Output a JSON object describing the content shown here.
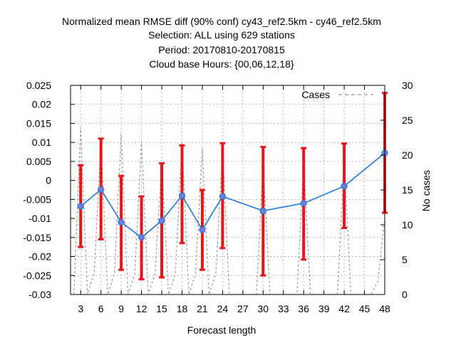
{
  "chart_data": {
    "type": "line",
    "title_lines": [
      "Normalized mean RMSE diff (90% conf) cy43_ref2.5km - cy46_ref2.5km",
      "Selection: ALL using   629 stations",
      "Period: 20170810-20170815",
      "Cloud base   Hours: {00,06,12,18}"
    ],
    "xlabel": "Forecast length",
    "ylabel_right": "No cases",
    "x_ticks": [
      "3",
      "6",
      "9",
      "12",
      "15",
      "18",
      "21",
      "24",
      "27",
      "30",
      "33",
      "36",
      "39",
      "42",
      "45",
      "48"
    ],
    "y_ticks": [
      "0.025",
      "0.02",
      "0.015",
      "0.01",
      "0.005",
      "0",
      "-0.005",
      "-0.01",
      "-0.015",
      "-0.02",
      "-0.025",
      "-0.03"
    ],
    "y2_ticks": [
      "30",
      "25",
      "20",
      "15",
      "10",
      "5",
      "0"
    ],
    "ylim": [
      -0.03,
      0.025
    ],
    "y2lim": [
      0,
      30
    ],
    "xlim": [
      1.5,
      48
    ],
    "grid": true,
    "legend": {
      "label": "Cases",
      "placement": "top-right"
    },
    "series_line": {
      "color": "#1f78d8",
      "x": [
        3,
        6,
        9,
        12,
        15,
        18,
        21,
        24,
        30,
        36,
        42,
        48
      ],
      "y": [
        -0.0068,
        -0.0024,
        -0.011,
        -0.015,
        -0.0106,
        -0.004,
        -0.013,
        -0.0042,
        -0.008,
        -0.006,
        -0.0015,
        0.0072
      ]
    },
    "error_bars": {
      "color": "#e8141b",
      "x": [
        3,
        6,
        9,
        12,
        15,
        18,
        21,
        24,
        30,
        36,
        42,
        48
      ],
      "low": [
        -0.0175,
        -0.0155,
        -0.0235,
        -0.026,
        -0.0255,
        -0.0165,
        -0.0235,
        -0.0178,
        -0.025,
        -0.0208,
        -0.0125,
        -0.0085
      ],
      "high": [
        0.004,
        0.011,
        0.0012,
        -0.0042,
        0.0045,
        0.0092,
        -0.0025,
        0.0098,
        0.0088,
        0.0085,
        0.0097,
        0.023
      ]
    },
    "cases_series": {
      "color": "#999999",
      "x": [
        2,
        3,
        4,
        5,
        6,
        7,
        8,
        9,
        10,
        11,
        12,
        13,
        14,
        15,
        16,
        17,
        18,
        19,
        20,
        21,
        22,
        23,
        24,
        25,
        26,
        27,
        28,
        29,
        30,
        31,
        32,
        33,
        34,
        35,
        36,
        37,
        38,
        39,
        40,
        41,
        42,
        43,
        44,
        45,
        46,
        47,
        48
      ],
      "y": [
        0,
        24,
        0,
        3,
        22,
        0,
        3,
        23,
        0,
        3,
        22,
        0,
        3,
        19,
        0,
        3,
        22,
        0,
        3,
        21,
        0,
        3,
        21,
        0,
        0,
        0,
        0,
        0,
        19,
        0,
        0,
        0,
        0,
        0,
        19,
        0,
        0,
        0,
        0,
        0,
        19,
        0,
        0,
        0,
        0,
        2,
        11
      ]
    }
  }
}
